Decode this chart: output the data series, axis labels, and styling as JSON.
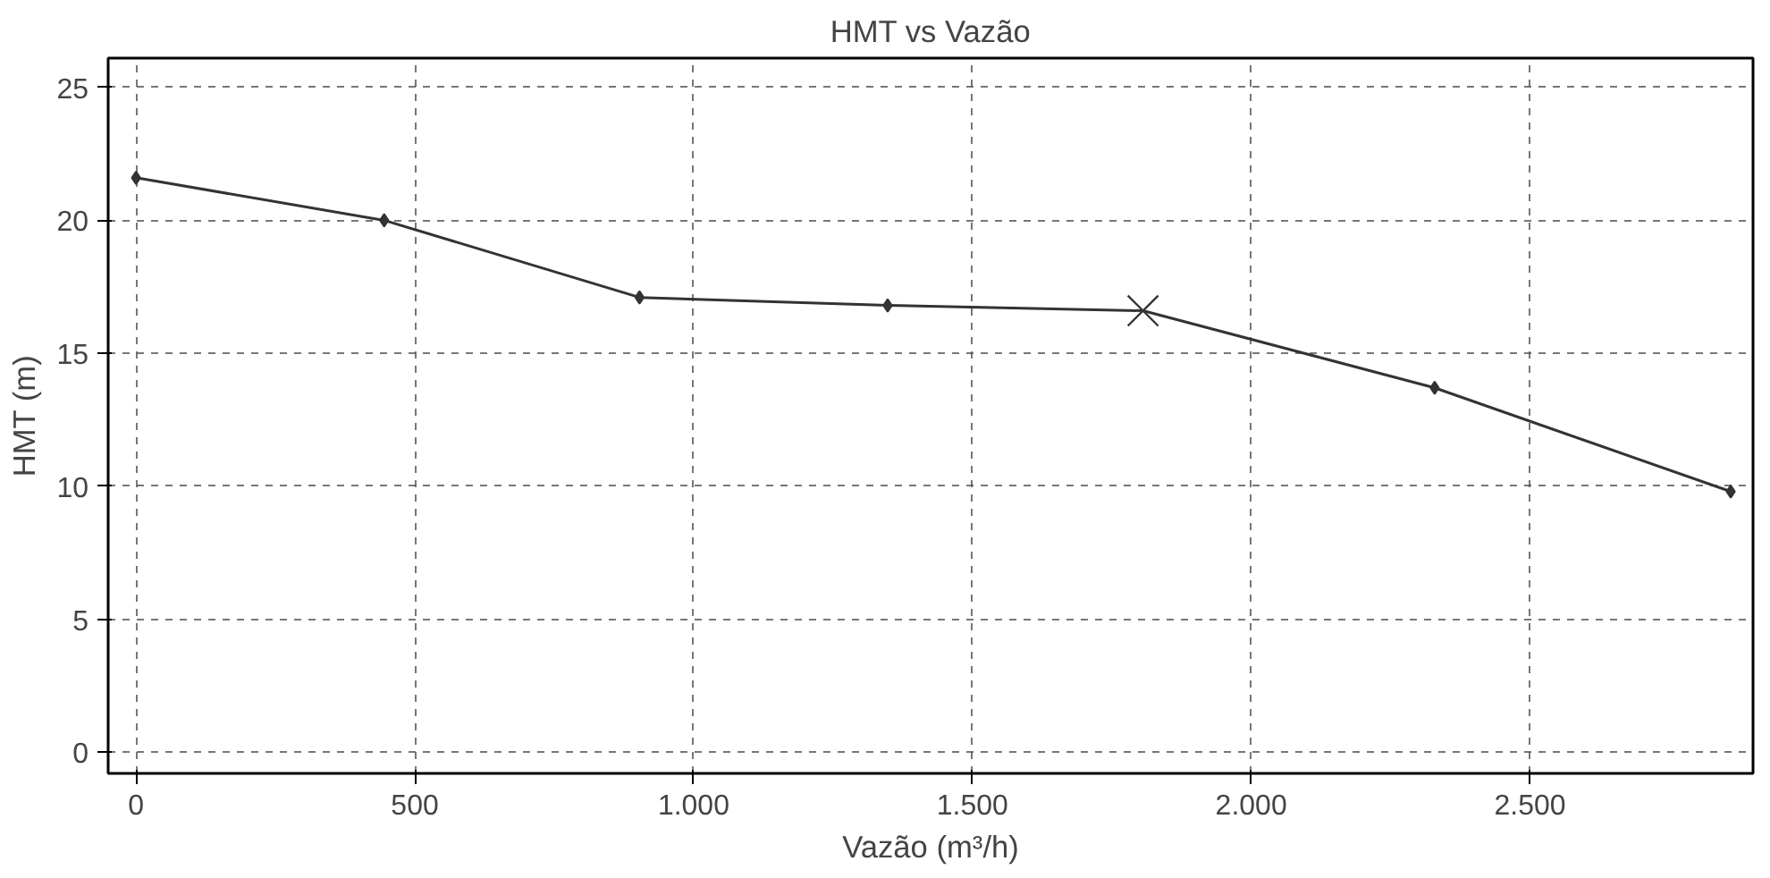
{
  "chart_data": {
    "type": "line",
    "title": "HMT vs Vazão",
    "xlabel": "Vazão (m³/h)",
    "ylabel": "HMT (m)",
    "series": [
      {
        "color": "#333333",
        "marker": "diamond",
        "x": [
          0,
          445,
          903,
          1348,
          1806,
          2329,
          2860
        ],
        "values": [
          21.6,
          20.0,
          17.1,
          16.8,
          16.6,
          13.7,
          9.8
        ]
      },
      {
        "type": "scatter",
        "color": "#333333",
        "marker": "cross",
        "x": [
          1806
        ],
        "values": [
          16.6
        ]
      }
    ],
    "xlim": [
      -50,
      2900
    ],
    "ylim": [
      -0.8,
      26.1
    ],
    "xticks": [
      0,
      500,
      {
        "value": 1000,
        "label": "1.000"
      },
      {
        "value": 1500,
        "label": "1.500"
      },
      {
        "value": 2000,
        "label": "2.000"
      },
      {
        "value": 2500,
        "label": "2.500"
      }
    ],
    "yticks": [
      0,
      5,
      10,
      15,
      20,
      25
    ],
    "grid": true,
    "line_style": "solid"
  }
}
